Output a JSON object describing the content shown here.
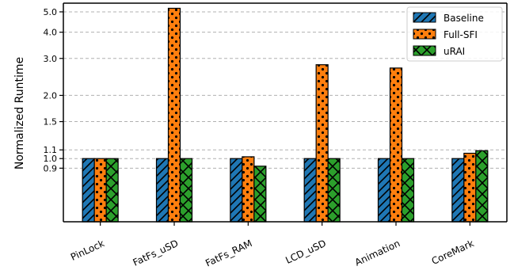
{
  "chart_data": {
    "type": "bar",
    "ylabel": "Normalized Runtime",
    "xlabel": "",
    "title": "",
    "categories": [
      "PinLock",
      "FatFs_uSD",
      "FatFs_RAM",
      "LCD_uSD",
      "Animation",
      "CoreMark"
    ],
    "series": [
      {
        "name": "Baseline",
        "color": "#1f77b4",
        "hatch": "diagonal",
        "values": [
          1.0,
          1.0,
          1.0,
          1.0,
          1.0,
          1.0
        ]
      },
      {
        "name": "Full-SFI",
        "color": "#ff7f0e",
        "hatch": "dots",
        "values": [
          1.0,
          5.2,
          1.02,
          2.8,
          2.7,
          1.06
        ]
      },
      {
        "name": "uRAI",
        "color": "#2ca02c",
        "hatch": "cross",
        "values": [
          1.0,
          1.0,
          0.92,
          1.0,
          1.0,
          1.09
        ]
      }
    ],
    "yscale": "log",
    "ylim": [
      0.5,
      5.5
    ],
    "yticks": [
      0.9,
      1.0,
      1.1,
      1.5,
      2.0,
      3.0,
      4.0,
      5.0
    ],
    "ytick_labels": [
      "0.9",
      "1.0",
      "1.1",
      "1.5",
      "2.0",
      "3.0",
      "4.0",
      "5.0"
    ],
    "grid": "horizontal-dashed",
    "legend_position": "top-right"
  }
}
